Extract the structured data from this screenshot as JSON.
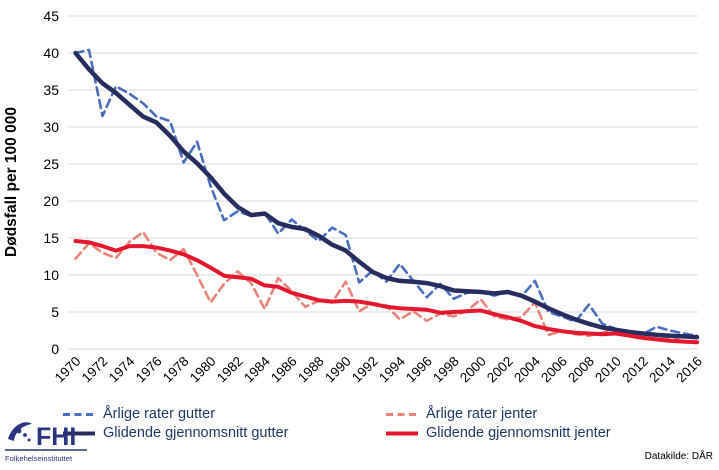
{
  "chart_data": {
    "type": "line",
    "title": "",
    "xlabel": "",
    "ylabel": "Dødsfall per 100 000",
    "ylim": [
      0,
      45
    ],
    "ytick_step": 5,
    "grid": "horizontal",
    "legend_position": "bottom",
    "x": [
      1970,
      1971,
      1972,
      1973,
      1974,
      1975,
      1976,
      1977,
      1978,
      1979,
      1980,
      1981,
      1982,
      1983,
      1984,
      1985,
      1986,
      1987,
      1988,
      1989,
      1990,
      1991,
      1992,
      1993,
      1994,
      1995,
      1996,
      1997,
      1998,
      1999,
      2000,
      2001,
      2002,
      2003,
      2004,
      2005,
      2006,
      2007,
      2008,
      2009,
      2010,
      2011,
      2012,
      2013,
      2014,
      2015,
      2016
    ],
    "xticks": [
      1970,
      1972,
      1974,
      1976,
      1978,
      1980,
      1982,
      1984,
      1986,
      1988,
      1990,
      1992,
      1994,
      1996,
      1998,
      2000,
      2002,
      2004,
      2006,
      2008,
      2010,
      2012,
      2014,
      2016
    ],
    "series": [
      {
        "name": "Årlige rater gutter",
        "style": "dashed",
        "color": "#4a6fbe",
        "width": 2.6,
        "values": [
          40.0,
          40.4,
          31.5,
          35.5,
          34.5,
          33.2,
          31.4,
          30.8,
          25.2,
          28.0,
          22.0,
          17.4,
          18.6,
          18.0,
          18.4,
          15.6,
          17.5,
          16.0,
          14.6,
          16.4,
          15.4,
          9.0,
          10.6,
          9.1,
          11.5,
          9.2,
          7.0,
          8.8,
          6.8,
          7.6,
          7.8,
          7.2,
          7.8,
          7.1,
          9.2,
          5.0,
          4.4,
          3.7,
          6.0,
          3.4,
          2.7,
          2.3,
          2.0,
          3.0,
          2.5,
          2.1,
          1.8
        ]
      },
      {
        "name": "Årlige rater jenter",
        "style": "dashed",
        "color": "#e8857a",
        "width": 2.6,
        "values": [
          12.2,
          14.3,
          13.0,
          12.3,
          14.5,
          15.8,
          13.0,
          12.0,
          13.5,
          10.0,
          6.3,
          8.8,
          10.5,
          8.9,
          5.4,
          9.6,
          7.8,
          5.7,
          6.5,
          6.3,
          9.1,
          5.1,
          6.2,
          5.9,
          4.0,
          5.1,
          3.8,
          4.8,
          4.4,
          5.2,
          6.7,
          4.4,
          4.0,
          4.3,
          6.3,
          1.9,
          2.4,
          2.0,
          1.8,
          2.2,
          2.7,
          1.8,
          1.5,
          1.3,
          1.6,
          1.0,
          0.8
        ]
      },
      {
        "name": "Glidende gjennomsnitt gutter",
        "style": "solid",
        "color": "#272d5f",
        "width": 4.5,
        "values": [
          40.0,
          37.8,
          35.9,
          34.6,
          33.0,
          31.4,
          30.6,
          28.8,
          26.7,
          25.1,
          23.2,
          21.0,
          19.2,
          18.1,
          18.3,
          17.0,
          16.5,
          16.2,
          15.3,
          14.1,
          13.3,
          11.8,
          10.4,
          9.6,
          9.2,
          9.1,
          8.9,
          8.5,
          7.9,
          7.8,
          7.7,
          7.5,
          7.7,
          7.2,
          6.4,
          5.5,
          4.7,
          4.0,
          3.4,
          2.9,
          2.6,
          2.3,
          2.1,
          1.9,
          1.8,
          1.7,
          1.6
        ]
      },
      {
        "name": "Glidende gjennomsnitt jenter",
        "style": "solid",
        "color": "#e3182f",
        "width": 4.0,
        "values": [
          14.6,
          14.4,
          13.9,
          13.3,
          13.9,
          13.9,
          13.7,
          13.3,
          12.8,
          12.0,
          11.0,
          9.9,
          9.7,
          9.5,
          8.6,
          8.4,
          7.6,
          7.1,
          6.6,
          6.4,
          6.5,
          6.4,
          6.1,
          5.7,
          5.5,
          5.4,
          5.3,
          4.9,
          5.0,
          5.1,
          5.2,
          4.7,
          4.3,
          3.8,
          3.1,
          2.7,
          2.4,
          2.2,
          2.1,
          2.0,
          2.1,
          1.8,
          1.5,
          1.3,
          1.1,
          1.0,
          0.9
        ]
      }
    ]
  },
  "colors": {
    "gridline": "#d9d9d9",
    "axis_text": "#000000",
    "legend_text": "#1f3864",
    "logo_navy": "#2a3580"
  },
  "footer": {
    "source": "Datakilde: DÅR",
    "logo": {
      "abbr": "FHI",
      "full": "Folkehelseinstituttet"
    }
  }
}
